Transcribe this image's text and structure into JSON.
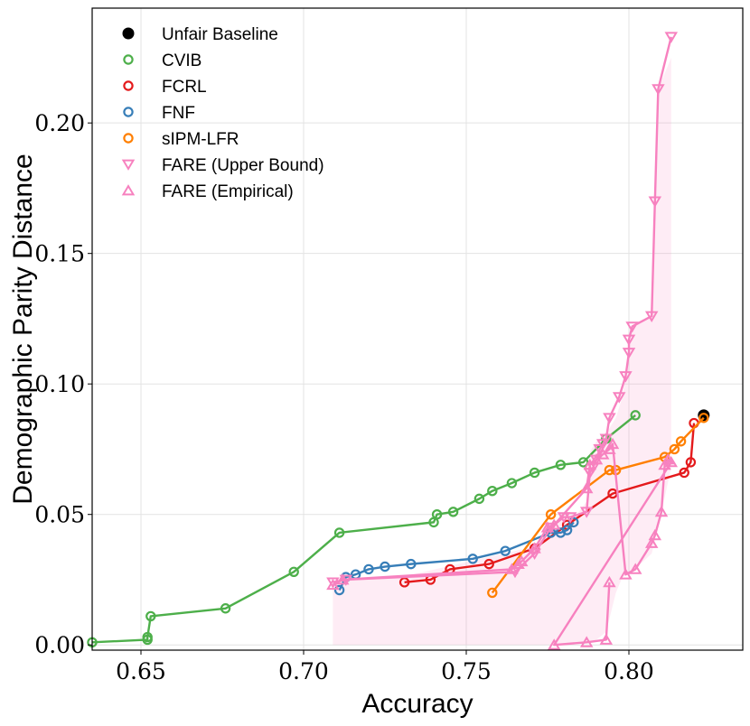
{
  "chart_data": {
    "type": "scatter",
    "title": "",
    "xlabel": "Accuracy",
    "ylabel": "Demographic Parity Distance",
    "xlim": [
      0.635,
      0.835
    ],
    "ylim": [
      -0.002,
      0.244
    ],
    "xticks": [
      0.65,
      0.7,
      0.75,
      0.8
    ],
    "xtick_labels": [
      "0.65",
      "0.70",
      "0.75",
      "0.80"
    ],
    "yticks": [
      0.0,
      0.05,
      0.1,
      0.15,
      0.2
    ],
    "ytick_labels": [
      "0.00",
      "0.05",
      "0.10",
      "0.15",
      "0.20"
    ],
    "grid": true,
    "legend_position": "top-left",
    "fill_between": {
      "color": "#f781bf",
      "opacity": 0.15,
      "x": [
        0.709,
        0.712,
        0.73,
        0.772,
        0.774,
        0.784,
        0.787,
        0.788,
        0.79,
        0.793,
        0.796,
        0.798,
        0.8,
        0.801,
        0.807,
        0.808,
        0.809,
        0.813,
        0.813
      ],
      "y": [
        0.0,
        0.0,
        0.0,
        0.0,
        0.0,
        0.001,
        0.001,
        0.001,
        0.002,
        0.005,
        0.02,
        0.026,
        0.027,
        0.028,
        0.035,
        0.04,
        0.045,
        0.068,
        0.233
      ],
      "upper": [
        0.024,
        0.025,
        0.026,
        0.038,
        0.045,
        0.05,
        0.055,
        0.074,
        0.078,
        0.081,
        0.087,
        0.095,
        0.112,
        0.122,
        0.126,
        0.17,
        0.213,
        0.225,
        0.233
      ]
    },
    "series": [
      {
        "name": "Unfair Baseline",
        "color": "#000000",
        "marker": "filled-circle",
        "line": false,
        "x": [
          0.823
        ],
        "y": [
          0.088
        ]
      },
      {
        "name": "CVIB",
        "color": "#4daf4a",
        "marker": "circle",
        "line": true,
        "x": [
          0.635,
          0.652,
          0.652,
          0.653,
          0.676,
          0.697,
          0.711,
          0.74,
          0.741,
          0.746,
          0.754,
          0.758,
          0.764,
          0.771,
          0.779,
          0.786,
          0.793,
          0.802
        ],
        "y": [
          0.001,
          0.002,
          0.003,
          0.011,
          0.014,
          0.028,
          0.043,
          0.047,
          0.05,
          0.051,
          0.056,
          0.059,
          0.062,
          0.066,
          0.069,
          0.07,
          0.079,
          0.088
        ]
      },
      {
        "name": "FCRL",
        "color": "#e41a1c",
        "marker": "circle",
        "line": true,
        "x": [
          0.731,
          0.739,
          0.745,
          0.757,
          0.771,
          0.781,
          0.795,
          0.817,
          0.819,
          0.82
        ],
        "y": [
          0.024,
          0.025,
          0.029,
          0.031,
          0.037,
          0.046,
          0.058,
          0.066,
          0.07,
          0.085
        ]
      },
      {
        "name": "FNF",
        "color": "#377eb8",
        "marker": "circle",
        "line": true,
        "x": [
          0.711,
          0.713,
          0.716,
          0.72,
          0.725,
          0.733,
          0.752,
          0.762,
          0.776,
          0.779,
          0.781,
          0.783
        ],
        "y": [
          0.021,
          0.026,
          0.027,
          0.029,
          0.03,
          0.031,
          0.033,
          0.036,
          0.043,
          0.043,
          0.044,
          0.047
        ]
      },
      {
        "name": "sIPM-LFR",
        "color": "#ff7f00",
        "marker": "circle",
        "line": true,
        "x": [
          0.758,
          0.776,
          0.794,
          0.796,
          0.811,
          0.814,
          0.816,
          0.823
        ],
        "y": [
          0.02,
          0.05,
          0.067,
          0.067,
          0.072,
          0.075,
          0.078,
          0.087
        ]
      },
      {
        "name": "FARE (Upper Bound)",
        "color": "#f781bf",
        "marker": "triangle-down",
        "line": true,
        "x": [
          0.709,
          0.713,
          0.765,
          0.771,
          0.776,
          0.78,
          0.782,
          0.787,
          0.788,
          0.789,
          0.79,
          0.791,
          0.792,
          0.793,
          0.794,
          0.797,
          0.799,
          0.8,
          0.8,
          0.801,
          0.807,
          0.808,
          0.809,
          0.813
        ],
        "y": [
          0.024,
          0.025,
          0.028,
          0.035,
          0.045,
          0.049,
          0.049,
          0.051,
          0.066,
          0.068,
          0.071,
          0.075,
          0.077,
          0.079,
          0.087,
          0.095,
          0.103,
          0.112,
          0.117,
          0.122,
          0.126,
          0.17,
          0.213,
          0.233
        ]
      },
      {
        "name": "FARE (Empirical)",
        "color": "#f781bf",
        "marker": "triangle-up",
        "line": true,
        "x": [
          0.709,
          0.712,
          0.764,
          0.766,
          0.767,
          0.771,
          0.775,
          0.777,
          0.787,
          0.788,
          0.79,
          0.792,
          0.794,
          0.795,
          0.799,
          0.802,
          0.807,
          0.808,
          0.81,
          0.811,
          0.812,
          0.813,
          0.777,
          0.787,
          0.793,
          0.794
        ],
        "y": [
          0.023,
          0.025,
          0.029,
          0.031,
          0.032,
          0.037,
          0.045,
          0.046,
          0.06,
          0.069,
          0.071,
          0.073,
          0.075,
          0.077,
          0.027,
          0.029,
          0.039,
          0.042,
          0.051,
          0.069,
          0.071,
          0.07,
          0.0,
          0.001,
          0.002,
          0.024
        ]
      }
    ]
  }
}
